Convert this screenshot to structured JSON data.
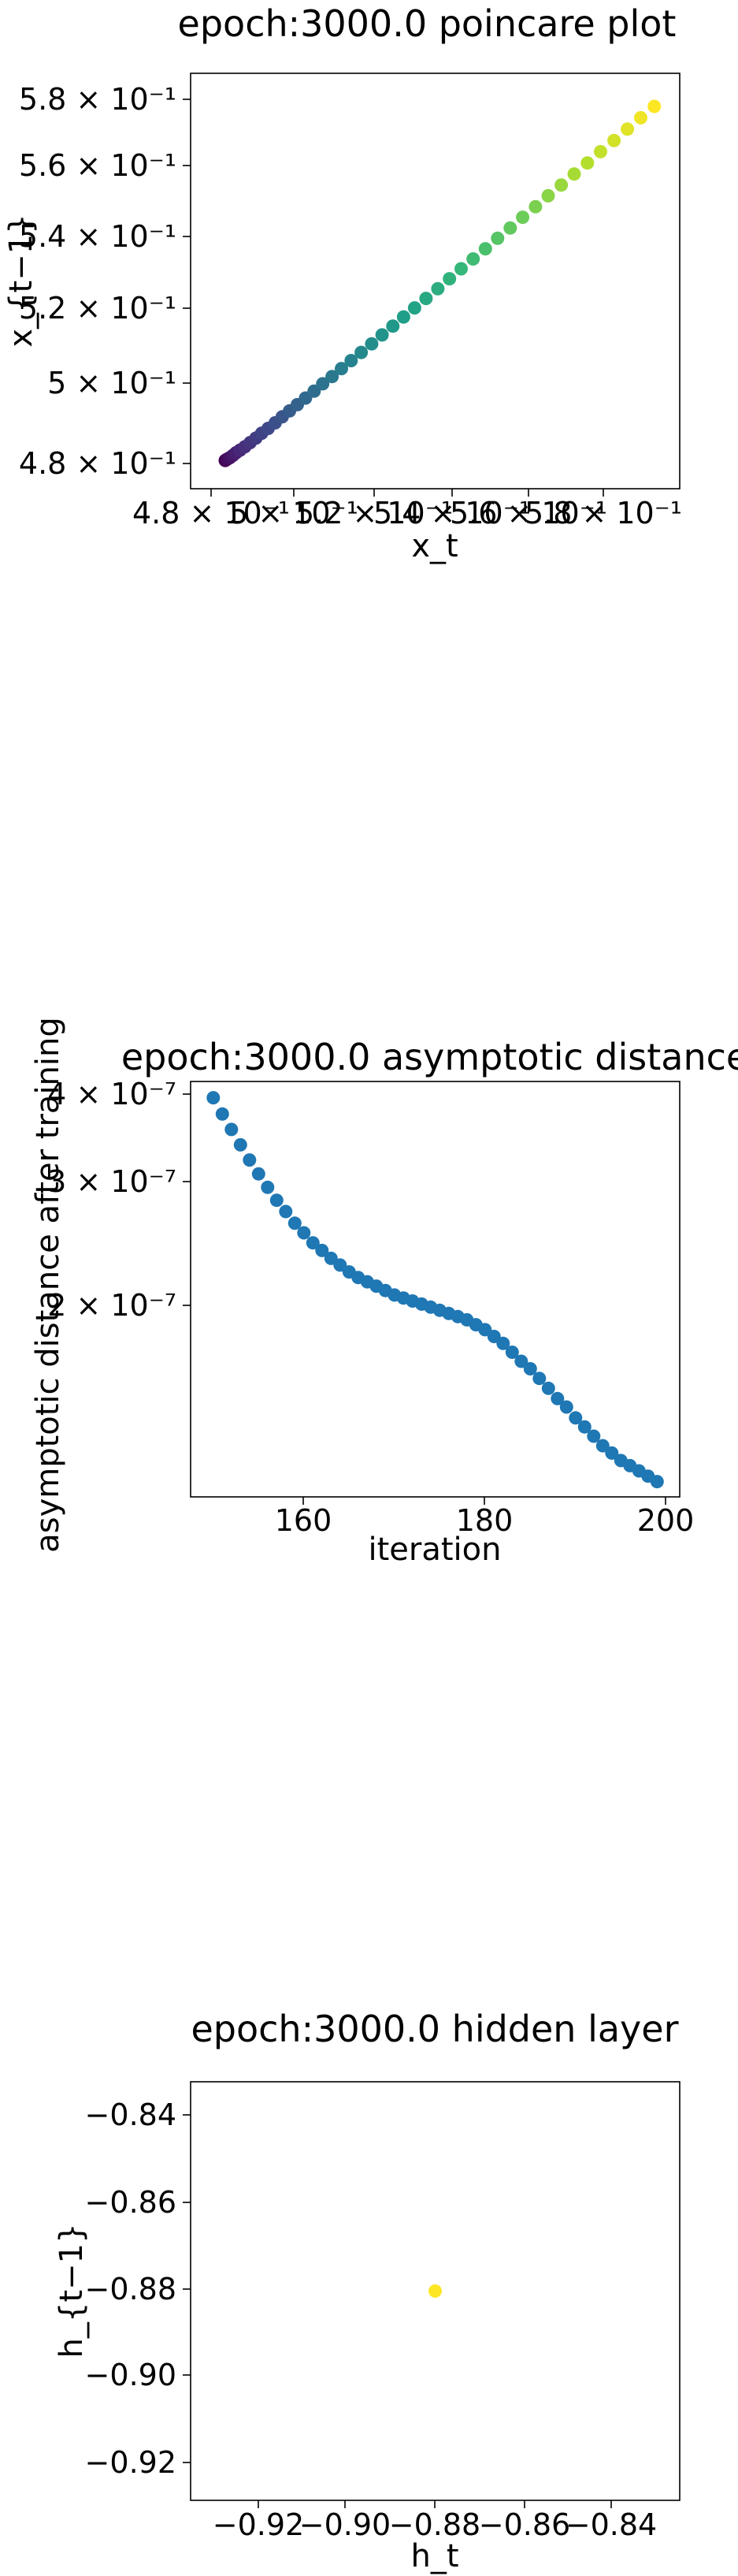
{
  "charts": {
    "0": {
      "title": "epoch:3000.0 poincare plot",
      "xlabel": "x_t",
      "ylabel": "x_{t−1}",
      "xticks": [
        "4.8 × 10⁻¹",
        "5 × 10⁻¹",
        "5.2 × 10⁻¹",
        "5.4 × 10⁻¹",
        "5.6 × 10⁻¹",
        "5.8 × 10⁻¹"
      ],
      "yticks": [
        "5.8 × 10⁻¹",
        "5.6 × 10⁻¹",
        "5.4 × 10⁻¹",
        "5.2 × 10⁻¹",
        "5 × 10⁻¹",
        "4.8 × 10⁻¹"
      ]
    },
    "1": {
      "title": "epoch:3000.0 asymptotic distance",
      "xlabel": "iteration",
      "ylabel": "asymptotic distance after training",
      "xticks": [
        "160",
        "180",
        "200"
      ],
      "yticks": [
        "4 × 10⁻⁷",
        "3 × 10⁻⁷",
        "2 × 10⁻⁷"
      ]
    },
    "2": {
      "title": "epoch:3000.0 hidden layer",
      "xlabel": "h_t",
      "ylabel": "h_{t−1}",
      "xticks": [
        "−0.92",
        "−0.90",
        "−0.88",
        "−0.86",
        "−0.84"
      ],
      "yticks": [
        "−0.84",
        "−0.86",
        "−0.88",
        "−0.90",
        "−0.92"
      ]
    }
  },
  "chart_data": [
    {
      "type": "scatter",
      "title": "epoch:3000.0 poincare plot",
      "xlabel": "x_t",
      "ylabel": "x_{t−1}",
      "xscale": "log",
      "yscale": "log",
      "xlim": [
        0.471,
        0.592
      ],
      "ylim": [
        0.471,
        0.592
      ],
      "xtick_values": [
        0.48,
        0.5,
        0.52,
        0.54,
        0.56,
        0.58
      ],
      "ytick_values": [
        0.48,
        0.5,
        0.52,
        0.54,
        0.56,
        0.58
      ],
      "colormap": "viridis",
      "grid": false,
      "x": [
        0.4787,
        0.4791,
        0.4797,
        0.4804,
        0.4811,
        0.482,
        0.4831,
        0.4843,
        0.4856,
        0.4869,
        0.4884,
        0.49,
        0.4916,
        0.4933,
        0.4951,
        0.497,
        0.499,
        0.501,
        0.5032,
        0.5054,
        0.5077,
        0.5101,
        0.5126,
        0.5151,
        0.5177,
        0.5203,
        0.523,
        0.5258,
        0.5287,
        0.5316,
        0.5345,
        0.5375,
        0.5406,
        0.5437,
        0.5469,
        0.5501,
        0.5534,
        0.5567,
        0.5601,
        0.5635,
        0.567,
        0.5705,
        0.5741,
        0.5777,
        0.5813,
        0.585
      ],
      "y": [
        0.4784,
        0.4787,
        0.4791,
        0.4797,
        0.4804,
        0.4811,
        0.482,
        0.4831,
        0.4843,
        0.4856,
        0.4869,
        0.4884,
        0.49,
        0.4916,
        0.4933,
        0.4951,
        0.497,
        0.499,
        0.501,
        0.5032,
        0.5054,
        0.5077,
        0.5101,
        0.5126,
        0.5151,
        0.5177,
        0.5203,
        0.523,
        0.5258,
        0.5287,
        0.5316,
        0.5345,
        0.5375,
        0.5406,
        0.5437,
        0.5469,
        0.5501,
        0.5534,
        0.5567,
        0.5601,
        0.5635,
        0.567,
        0.5705,
        0.5741,
        0.5777,
        0.5813
      ]
    },
    {
      "type": "scatter",
      "title": "epoch:3000.0 asymptotic distance",
      "xlabel": "iteration",
      "ylabel": "asymptotic distance after training",
      "xscale": "linear",
      "yscale": "log",
      "xlim": [
        147.5,
        201.5
      ],
      "ylim": [
        1.095e-07,
        4.14e-07
      ],
      "xtick_values": [
        160,
        180,
        200
      ],
      "ytick_values": [
        4e-07,
        3e-07,
        2e-07
      ],
      "color": "#1f77b4",
      "grid": false,
      "x": [
        150,
        151,
        152,
        153,
        154,
        155,
        156,
        157,
        158,
        159,
        160,
        161,
        162,
        163,
        164,
        165,
        166,
        167,
        168,
        169,
        170,
        171,
        172,
        173,
        174,
        175,
        176,
        177,
        178,
        179,
        180,
        181,
        182,
        183,
        184,
        185,
        186,
        187,
        188,
        189,
        190,
        191,
        192,
        193,
        194,
        195,
        196,
        197,
        198,
        199
      ],
      "y": [
        3.93e-07,
        3.73e-07,
        3.55e-07,
        3.38e-07,
        3.22e-07,
        3.08e-07,
        2.95e-07,
        2.83e-07,
        2.73e-07,
        2.63e-07,
        2.55e-07,
        2.47e-07,
        2.41e-07,
        2.35e-07,
        2.3e-07,
        2.25e-07,
        2.21e-07,
        2.18e-07,
        2.15e-07,
        2.12e-07,
        2.09e-07,
        2.07e-07,
        2.05e-07,
        2.03e-07,
        2.01e-07,
        1.99e-07,
        1.97e-07,
        1.95e-07,
        1.93e-07,
        1.9e-07,
        1.87e-07,
        1.83e-07,
        1.79e-07,
        1.74e-07,
        1.69e-07,
        1.65e-07,
        1.6e-07,
        1.55e-07,
        1.5e-07,
        1.46e-07,
        1.41e-07,
        1.37e-07,
        1.33e-07,
        1.29e-07,
        1.26e-07,
        1.23e-07,
        1.21e-07,
        1.19e-07,
        1.17e-07,
        1.15e-07
      ]
    },
    {
      "type": "scatter",
      "title": "epoch:3000.0 hidden layer",
      "xlabel": "h_t",
      "ylabel": "h_{t−1}",
      "xscale": "linear",
      "yscale": "linear",
      "xlim": [
        -0.9305,
        -0.8325
      ],
      "ylim": [
        -0.9305,
        -0.8325
      ],
      "xtick_values": [
        -0.92,
        -0.9,
        -0.88,
        -0.86,
        -0.84
      ],
      "ytick_values": [
        -0.84,
        -0.86,
        -0.88,
        -0.9,
        -0.92
      ],
      "color": "#fde725",
      "grid": false,
      "x": [
        -0.8815
      ],
      "y": [
        -0.8815
      ]
    }
  ]
}
